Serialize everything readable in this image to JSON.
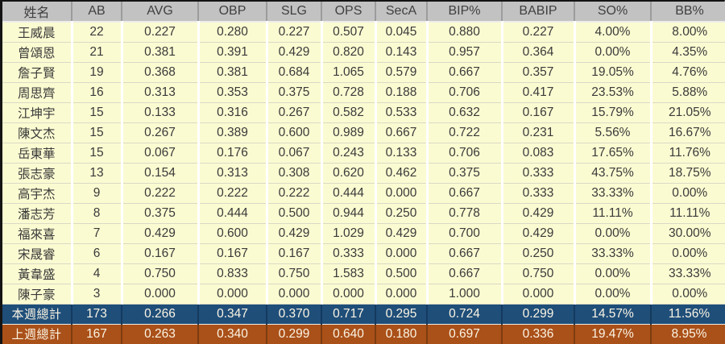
{
  "chart_data": {
    "type": "table",
    "columns": [
      "姓名",
      "AB",
      "AVG",
      "OBP",
      "SLG",
      "OPS",
      "SecA",
      "BIP%",
      "BABIP",
      "SO%",
      "BB%"
    ],
    "rows": [
      [
        "王威晨",
        "22",
        "0.227",
        "0.280",
        "0.227",
        "0.507",
        "0.045",
        "0.880",
        "0.227",
        "4.00%",
        "8.00%"
      ],
      [
        "曾頌恩",
        "21",
        "0.381",
        "0.391",
        "0.429",
        "0.820",
        "0.143",
        "0.957",
        "0.364",
        "0.00%",
        "4.35%"
      ],
      [
        "詹子賢",
        "19",
        "0.368",
        "0.381",
        "0.684",
        "1.065",
        "0.579",
        "0.667",
        "0.357",
        "19.05%",
        "4.76%"
      ],
      [
        "周思齊",
        "16",
        "0.313",
        "0.353",
        "0.375",
        "0.728",
        "0.188",
        "0.706",
        "0.417",
        "23.53%",
        "5.88%"
      ],
      [
        "江坤宇",
        "15",
        "0.133",
        "0.316",
        "0.267",
        "0.582",
        "0.533",
        "0.632",
        "0.167",
        "15.79%",
        "21.05%"
      ],
      [
        "陳文杰",
        "15",
        "0.267",
        "0.389",
        "0.600",
        "0.989",
        "0.667",
        "0.722",
        "0.231",
        "5.56%",
        "16.67%"
      ],
      [
        "岳東華",
        "15",
        "0.067",
        "0.176",
        "0.067",
        "0.243",
        "0.133",
        "0.706",
        "0.083",
        "17.65%",
        "11.76%"
      ],
      [
        "張志豪",
        "13",
        "0.154",
        "0.313",
        "0.308",
        "0.620",
        "0.462",
        "0.375",
        "0.333",
        "43.75%",
        "18.75%"
      ],
      [
        "高宇杰",
        "9",
        "0.222",
        "0.222",
        "0.222",
        "0.444",
        "0.000",
        "0.667",
        "0.333",
        "33.33%",
        "0.00%"
      ],
      [
        "潘志芳",
        "8",
        "0.375",
        "0.444",
        "0.500",
        "0.944",
        "0.250",
        "0.778",
        "0.429",
        "11.11%",
        "11.11%"
      ],
      [
        "福來喜",
        "7",
        "0.429",
        "0.600",
        "0.429",
        "1.029",
        "0.429",
        "0.700",
        "0.429",
        "0.00%",
        "30.00%"
      ],
      [
        "宋晟睿",
        "6",
        "0.167",
        "0.167",
        "0.167",
        "0.333",
        "0.000",
        "0.667",
        "0.250",
        "33.33%",
        "0.00%"
      ],
      [
        "黃韋盛",
        "4",
        "0.750",
        "0.833",
        "0.750",
        "1.583",
        "0.500",
        "0.667",
        "0.750",
        "0.00%",
        "33.33%"
      ],
      [
        "陳子豪",
        "3",
        "0.000",
        "0.000",
        "0.000",
        "0.000",
        "0.000",
        "1.000",
        "0.000",
        "0.00%",
        "0.00%"
      ]
    ],
    "totals": [
      {
        "label": "本週總計",
        "values": [
          "173",
          "0.266",
          "0.347",
          "0.370",
          "0.717",
          "0.295",
          "0.724",
          "0.299",
          "14.57%",
          "11.56%"
        ]
      },
      {
        "label": "上週總計",
        "values": [
          "167",
          "0.263",
          "0.340",
          "0.299",
          "0.640",
          "0.180",
          "0.697",
          "0.336",
          "19.47%",
          "8.95%"
        ]
      }
    ],
    "layout_hints": {
      "grid": true,
      "header_position": "top",
      "totals_position": "bottom"
    }
  },
  "colors": {
    "header_bg": "#c2c2c2",
    "row_bg": "#fbfbd2",
    "total_this_week_bg": "#1f4e79",
    "total_last_week_bg": "#aa5019",
    "header_text": "#3f3f3f",
    "cell_text": "#3a3a3a",
    "total_text": "#fbf5e4"
  }
}
